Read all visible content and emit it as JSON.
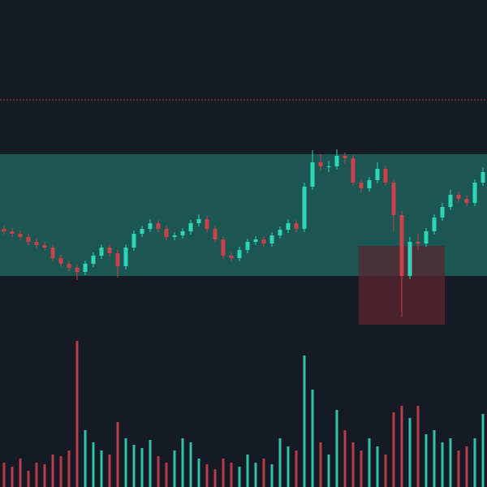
{
  "chart_data": {
    "type": "candlestick",
    "background": "#161a25",
    "up_color": "#2fd6b5",
    "down_color": "#c8414b",
    "ylim": [
      0,
      600
    ],
    "y2lim": [
      0,
      200
    ],
    "level": 477,
    "level_color": "#b03a3a",
    "zones": [
      {
        "color": "#1f6b63",
        "ylim": [
          260,
          410
        ]
      },
      {
        "color": "#5a2530",
        "ylim": [
          200,
          297
        ],
        "xlim": [
          43.7,
          54.3
        ]
      }
    ],
    "open": [
      318,
      315,
      312,
      308,
      302,
      298,
      295,
      282,
      275,
      270,
      265,
      275,
      285,
      295,
      288,
      272,
      295,
      312,
      318,
      325,
      318,
      308,
      310,
      315,
      325,
      330,
      318,
      305,
      285,
      282,
      292,
      302,
      305,
      300,
      310,
      317,
      325,
      318,
      370,
      400,
      395,
      395,
      408,
      405,
      375,
      368,
      378,
      392,
      375,
      335,
      260,
      302,
      300,
      315,
      332,
      345,
      360,
      355,
      350,
      375
    ],
    "high": [
      322,
      319,
      316,
      312,
      306,
      302,
      299,
      286,
      279,
      274,
      279,
      289,
      299,
      299,
      292,
      299,
      316,
      322,
      330,
      329,
      322,
      314,
      319,
      329,
      336,
      334,
      322,
      309,
      289,
      296,
      306,
      309,
      309,
      314,
      321,
      330,
      329,
      375,
      415,
      410,
      402,
      416,
      412,
      409,
      379,
      382,
      400,
      396,
      379,
      340,
      308,
      312,
      319,
      336,
      350,
      366,
      364,
      359,
      379,
      394
    ],
    "low": [
      311,
      308,
      304,
      298,
      294,
      291,
      278,
      271,
      266,
      255,
      261,
      271,
      281,
      284,
      258,
      268,
      291,
      308,
      314,
      314,
      304,
      304,
      306,
      311,
      321,
      314,
      301,
      281,
      278,
      278,
      288,
      298,
      296,
      296,
      306,
      313,
      314,
      314,
      366,
      390,
      388,
      391,
      398,
      371,
      362,
      364,
      374,
      371,
      315,
      210,
      256,
      292,
      296,
      311,
      328,
      341,
      351,
      346,
      346,
      371
    ],
    "close": [
      315,
      312,
      308,
      302,
      298,
      295,
      282,
      275,
      270,
      265,
      275,
      285,
      295,
      288,
      272,
      295,
      312,
      318,
      325,
      318,
      308,
      310,
      315,
      325,
      330,
      318,
      305,
      285,
      282,
      292,
      302,
      305,
      300,
      310,
      317,
      325,
      318,
      370,
      400,
      395,
      395,
      408,
      405,
      375,
      368,
      378,
      392,
      375,
      335,
      260,
      302,
      300,
      315,
      332,
      345,
      360,
      355,
      350,
      375,
      388
    ],
    "volume": [
      30,
      25,
      35,
      20,
      30,
      28,
      40,
      38,
      45,
      180,
      70,
      55,
      45,
      40,
      80,
      60,
      52,
      48,
      58,
      38,
      30,
      45,
      60,
      55,
      35,
      28,
      22,
      35,
      30,
      25,
      40,
      30,
      35,
      28,
      60,
      50,
      45,
      162,
      120,
      55,
      40,
      95,
      70,
      55,
      45,
      60,
      50,
      40,
      92,
      100,
      85,
      100,
      65,
      70,
      55,
      60,
      45,
      50,
      60,
      90
    ]
  }
}
